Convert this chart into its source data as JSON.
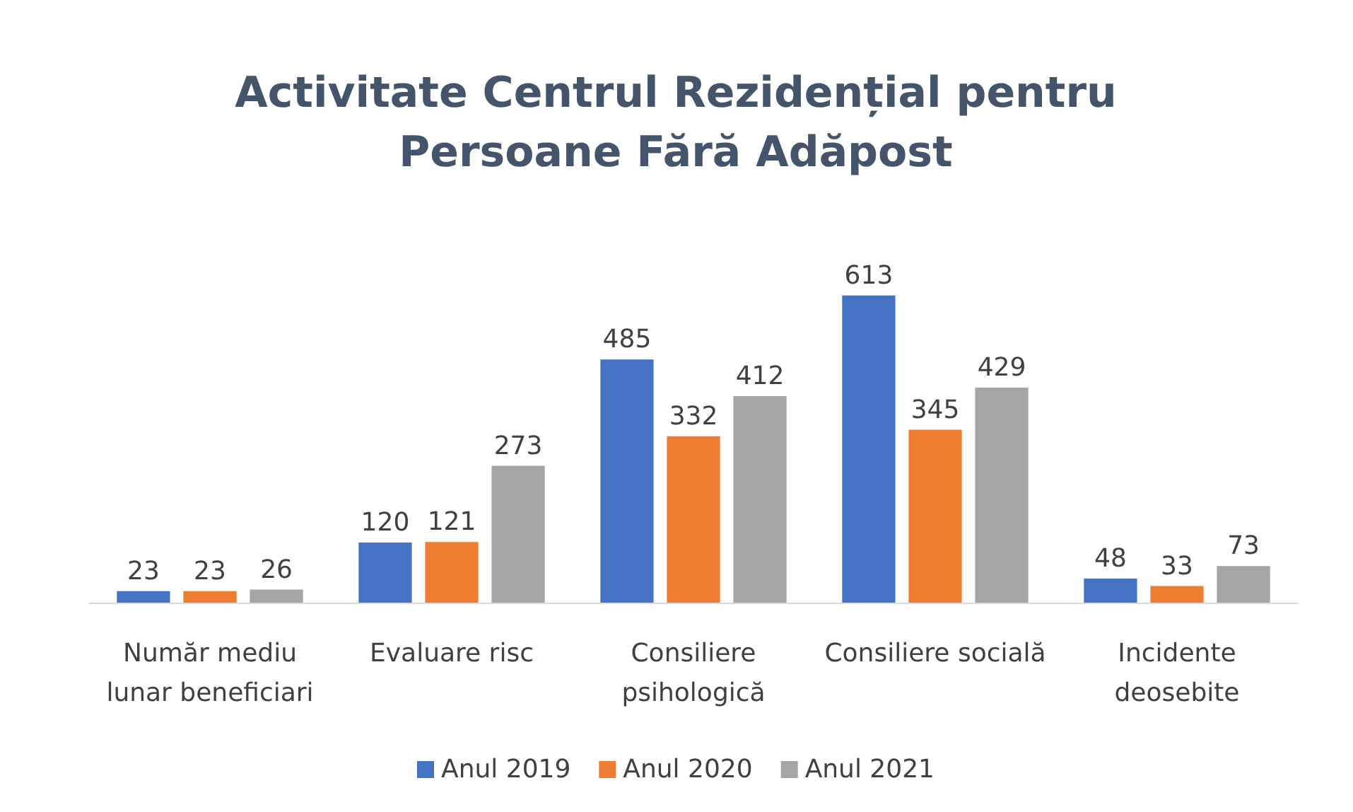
{
  "chart_data": {
    "type": "bar",
    "title": "Activitate Centrul Rezidențial pentru\nPersoane Fără Adăpost",
    "categories": [
      "Număr mediu\nlunar beneficiari",
      "Evaluare risc",
      "Consiliere\npsihologică",
      "Consiliere socială",
      "Incidente\ndeosebite"
    ],
    "series": [
      {
        "name": "Anul 2019",
        "color": "#4472c4",
        "values": [
          23,
          120,
          485,
          613,
          48
        ]
      },
      {
        "name": "Anul 2020",
        "color": "#ed7d31",
        "values": [
          23,
          121,
          332,
          345,
          33
        ]
      },
      {
        "name": "Anul 2021",
        "color": "#a5a5a5",
        "values": [
          26,
          273,
          412,
          429,
          73
        ]
      }
    ],
    "data_labels": true,
    "legend": "bottom"
  }
}
